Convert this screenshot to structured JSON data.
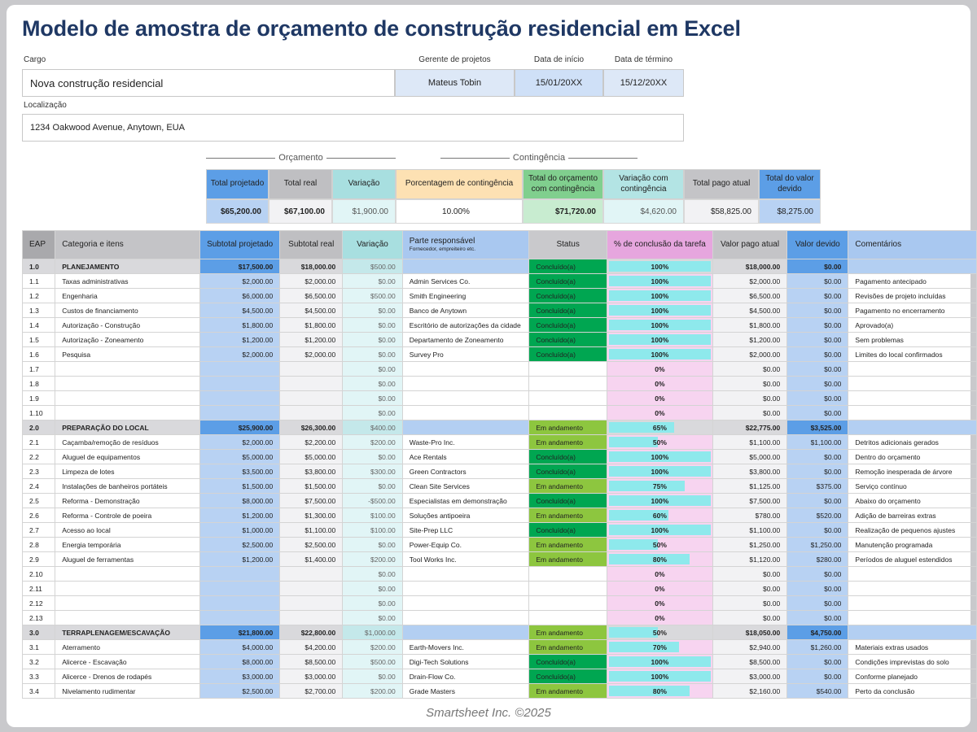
{
  "title": "Modelo de amostra de orçamento de construção residencial em Excel",
  "project": {
    "cargo_label": "Cargo",
    "cargo": "Nova construção residencial",
    "manager_label": "Gerente de projetos",
    "manager": "Mateus Tobin",
    "start_label": "Data de início",
    "start": "15/01/20XX",
    "end_label": "Data de término",
    "end": "15/12/20XX",
    "location_label": "Localização",
    "location": "1234 Oakwood Avenue, Anytown, EUA"
  },
  "summary": {
    "budget_label": "Orçamento",
    "contingency_label": "Contingência",
    "headers": [
      "Total projetado",
      "Total real",
      "Variação",
      "Porcentagem de contingência",
      "Total do orçamento com contingência",
      "Variação com contingência",
      "Total pago atual",
      "Total do valor devido"
    ],
    "values": [
      "$65,200.00",
      "$67,100.00",
      "$1,900.00",
      "10.00%",
      "$71,720.00",
      "$4,620.00",
      "$58,825.00",
      "$8,275.00"
    ]
  },
  "colors": {
    "title": "#1f3864",
    "completed": "#00a651",
    "in_progress": "#8dc63f",
    "progress_fill": "#8ee9ec",
    "progress_bg": "#f7d4f0"
  },
  "table": {
    "headers": [
      "EAP",
      "Categoria e itens",
      "Subtotal projetado",
      "Subtotal real",
      "Variação",
      "Parte responsável",
      "Status",
      "% de conclusão da tarefa",
      "Valor pago atual",
      "Valor devido",
      "Comentários"
    ],
    "responsible_sub": "Fornecedor, empreiteiro etc.",
    "rows": [
      [
        "1.0",
        "PLANEJAMENTO",
        "$17,500.00",
        "$18,000.00",
        "$500.00",
        "",
        "Concluído(a)",
        100,
        "$18,000.00",
        "$0.00",
        ""
      ],
      [
        "1.1",
        "Taxas administrativas",
        "$2,000.00",
        "$2,000.00",
        "$0.00",
        "Admin Services Co.",
        "Concluído(a)",
        100,
        "$2,000.00",
        "$0.00",
        "Pagamento antecipado"
      ],
      [
        "1.2",
        "Engenharia",
        "$6,000.00",
        "$6,500.00",
        "$500.00",
        "Smith Engineering",
        "Concluído(a)",
        100,
        "$6,500.00",
        "$0.00",
        "Revisões de projeto incluídas"
      ],
      [
        "1.3",
        "Custos de financiamento",
        "$4,500.00",
        "$4,500.00",
        "$0.00",
        "Banco de Anytown",
        "Concluído(a)",
        100,
        "$4,500.00",
        "$0.00",
        "Pagamento no encerramento"
      ],
      [
        "1.4",
        "Autorização - Construção",
        "$1,800.00",
        "$1,800.00",
        "$0.00",
        "Escritório de autorizações da cidade",
        "Concluído(a)",
        100,
        "$1,800.00",
        "$0.00",
        "Aprovado(a)"
      ],
      [
        "1.5",
        "Autorização - Zoneamento",
        "$1,200.00",
        "$1,200.00",
        "$0.00",
        "Departamento de Zoneamento",
        "Concluído(a)",
        100,
        "$1,200.00",
        "$0.00",
        "Sem problemas"
      ],
      [
        "1.6",
        "Pesquisa",
        "$2,000.00",
        "$2,000.00",
        "$0.00",
        "Survey Pro",
        "Concluído(a)",
        100,
        "$2,000.00",
        "$0.00",
        "Limites do local confirmados"
      ],
      [
        "1.7",
        "",
        "",
        "",
        "$0.00",
        "",
        "",
        0,
        "$0.00",
        "$0.00",
        ""
      ],
      [
        "1.8",
        "",
        "",
        "",
        "$0.00",
        "",
        "",
        0,
        "$0.00",
        "$0.00",
        ""
      ],
      [
        "1.9",
        "",
        "",
        "",
        "$0.00",
        "",
        "",
        0,
        "$0.00",
        "$0.00",
        ""
      ],
      [
        "1.10",
        "",
        "",
        "",
        "$0.00",
        "",
        "",
        0,
        "$0.00",
        "$0.00",
        ""
      ],
      [
        "2.0",
        "PREPARAÇÃO DO LOCAL",
        "$25,900.00",
        "$26,300.00",
        "$400.00",
        "",
        "Em andamento",
        65,
        "$22,775.00",
        "$3,525.00",
        ""
      ],
      [
        "2.1",
        "Caçamba/remoção de resíduos",
        "$2,000.00",
        "$2,200.00",
        "$200.00",
        "Waste-Pro Inc.",
        "Em andamento",
        50,
        "$1,100.00",
        "$1,100.00",
        "Detritos adicionais gerados"
      ],
      [
        "2.2",
        "Aluguel de equipamentos",
        "$5,000.00",
        "$5,000.00",
        "$0.00",
        "Ace Rentals",
        "Concluído(a)",
        100,
        "$5,000.00",
        "$0.00",
        "Dentro do orçamento"
      ],
      [
        "2.3",
        "Limpeza de lotes",
        "$3,500.00",
        "$3,800.00",
        "$300.00",
        "Green Contractors",
        "Concluído(a)",
        100,
        "$3,800.00",
        "$0.00",
        "Remoção inesperada de árvore"
      ],
      [
        "2.4",
        "Instalações de banheiros portáteis",
        "$1,500.00",
        "$1,500.00",
        "$0.00",
        "Clean Site Services",
        "Em andamento",
        75,
        "$1,125.00",
        "$375.00",
        "Serviço contínuo"
      ],
      [
        "2.5",
        "Reforma - Demonstração",
        "$8,000.00",
        "$7,500.00",
        "-$500.00",
        "Especialistas em demonstração",
        "Concluído(a)",
        100,
        "$7,500.00",
        "$0.00",
        "Abaixo do orçamento"
      ],
      [
        "2.6",
        "Reforma - Controle de poeira",
        "$1,200.00",
        "$1,300.00",
        "$100.00",
        "Soluções antipoeira",
        "Em andamento",
        60,
        "$780.00",
        "$520.00",
        "Adição de barreiras extras"
      ],
      [
        "2.7",
        "Acesso ao local",
        "$1,000.00",
        "$1,100.00",
        "$100.00",
        "Site-Prep LLC",
        "Concluído(a)",
        100,
        "$1,100.00",
        "$0.00",
        "Realização de pequenos ajustes"
      ],
      [
        "2.8",
        "Energia temporária",
        "$2,500.00",
        "$2,500.00",
        "$0.00",
        "Power-Equip Co.",
        "Em andamento",
        50,
        "$1,250.00",
        "$1,250.00",
        "Manutenção programada"
      ],
      [
        "2.9",
        "Aluguel de ferramentas",
        "$1,200.00",
        "$1,400.00",
        "$200.00",
        "Tool Works Inc.",
        "Em andamento",
        80,
        "$1,120.00",
        "$280.00",
        "Períodos de aluguel estendidos"
      ],
      [
        "2.10",
        "",
        "",
        "",
        "$0.00",
        "",
        "",
        0,
        "$0.00",
        "$0.00",
        ""
      ],
      [
        "2.11",
        "",
        "",
        "",
        "$0.00",
        "",
        "",
        0,
        "$0.00",
        "$0.00",
        ""
      ],
      [
        "2.12",
        "",
        "",
        "",
        "$0.00",
        "",
        "",
        0,
        "$0.00",
        "$0.00",
        ""
      ],
      [
        "2.13",
        "",
        "",
        "",
        "$0.00",
        "",
        "",
        0,
        "$0.00",
        "$0.00",
        ""
      ],
      [
        "3.0",
        "TERRAPLENAGEM/ESCAVAÇÃO",
        "$21,800.00",
        "$22,800.00",
        "$1,000.00",
        "",
        "Em andamento",
        50,
        "$18,050.00",
        "$4,750.00",
        ""
      ],
      [
        "3.1",
        "Aterramento",
        "$4,000.00",
        "$4,200.00",
        "$200.00",
        "Earth-Movers Inc.",
        "Em andamento",
        70,
        "$2,940.00",
        "$1,260.00",
        "Materiais extras usados"
      ],
      [
        "3.2",
        "Alicerce - Escavação",
        "$8,000.00",
        "$8,500.00",
        "$500.00",
        "Digi-Tech Solutions",
        "Concluído(a)",
        100,
        "$8,500.00",
        "$0.00",
        "Condições imprevistas do solo"
      ],
      [
        "3.3",
        "Alicerce - Drenos de rodapés",
        "$3,000.00",
        "$3,000.00",
        "$0.00",
        "Drain-Flow Co.",
        "Concluído(a)",
        100,
        "$3,000.00",
        "$0.00",
        "Conforme planejado"
      ],
      [
        "3.4",
        "Nivelamento rudimentar",
        "$2,500.00",
        "$2,700.00",
        "$200.00",
        "Grade Masters",
        "Em andamento",
        80,
        "$2,160.00",
        "$540.00",
        "Perto da conclusão"
      ]
    ]
  },
  "footer": "Smartsheet Inc. ©2025"
}
